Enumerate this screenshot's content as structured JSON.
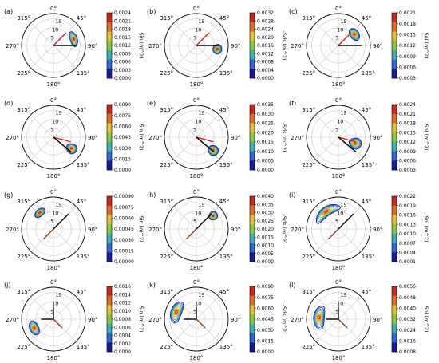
{
  "chart_data": {
    "type": "polar-contour",
    "direction_ticks": [
      "0°",
      "45°",
      "90°",
      "135°",
      "180°",
      "225°",
      "270°",
      "315°"
    ],
    "radial_ticks": [
      5,
      10,
      15
    ],
    "colormap": [
      "#1a1aa0",
      "#2f67d6",
      "#3fb0b0",
      "#88c840",
      "#e2c032",
      "#e06a28",
      "#c8281e"
    ],
    "panels": [
      {
        "label": "(a)",
        "cbar_label": "Sin (m^2)",
        "cbar_ticks": [
          "0.0024",
          "0.0021",
          "0.0018",
          "0.0015",
          "0.0012",
          "0.0009",
          "0.0006",
          "0.0003",
          "0.0000"
        ]
      },
      {
        "label": "(b)",
        "cbar_label": "-Sds (m^2)",
        "cbar_ticks": [
          "0.0032",
          "0.0028",
          "0.0024",
          "0.0020",
          "0.0016",
          "0.0012",
          "0.0008",
          "0.0004",
          "0.0000"
        ]
      },
      {
        "label": "(c)",
        "cbar_label": "Snl (m^2)",
        "cbar_ticks": [
          "0.0021",
          "0.0018",
          "0.0015",
          "0.0012",
          "0.0009",
          "0.0006",
          "0.0003"
        ]
      },
      {
        "label": "(d)",
        "cbar_label": "Sin (m^2)",
        "cbar_ticks": [
          "0.0090",
          "0.0075",
          "0.0060",
          "0.0045",
          "0.0030",
          "0.0015",
          "0.0000"
        ]
      },
      {
        "label": "(e)",
        "cbar_label": "-Sds (m^2)",
        "cbar_ticks": [
          "0.0035",
          "0.0030",
          "0.0025",
          "0.0020",
          "0.0015",
          "0.0010",
          "0.0005",
          "0.0000"
        ]
      },
      {
        "label": "(f)",
        "cbar_label": "Snl (m^2)",
        "cbar_ticks": [
          "0.0024",
          "0.0021",
          "0.0018",
          "0.0015",
          "0.0012",
          "0.0009",
          "0.0006",
          "0.0003"
        ]
      },
      {
        "label": "(g)",
        "cbar_label": "Sin (m^2)",
        "cbar_ticks": [
          "0.00090",
          "0.00075",
          "0.00060",
          "0.00045",
          "0.00030",
          "0.00015",
          "0.00000"
        ]
      },
      {
        "label": "(h)",
        "cbar_label": "-Sds (m^2)",
        "cbar_ticks": [
          "0.0040",
          "0.0035",
          "0.0030",
          "0.0025",
          "0.0020",
          "0.0015",
          "0.0010",
          "0.0005",
          "0.0000"
        ]
      },
      {
        "label": "(i)",
        "cbar_label": "Snl (m^2)",
        "cbar_ticks": [
          "0.0022",
          "0.0019",
          "0.0016",
          "0.0013",
          "0.0010",
          "0.0007",
          "0.0004",
          "0.0001"
        ]
      },
      {
        "label": "(j)",
        "cbar_label": "Sin (m^2)",
        "cbar_ticks": [
          "0.0016",
          "0.0014",
          "0.0012",
          "0.0010",
          "0.0008",
          "0.0006",
          "0.0004",
          "0.0002",
          "0.0000"
        ]
      },
      {
        "label": "(k)",
        "cbar_label": "-Sds (m^2)",
        "cbar_ticks": [
          "0.0090",
          "0.0075",
          "0.0060",
          "0.0045",
          "0.0030",
          "0.0015",
          "0.0000"
        ]
      },
      {
        "label": "(l)",
        "cbar_label": "Snl (m^2)",
        "cbar_ticks": [
          "0.0056",
          "0.0048",
          "0.0040",
          "0.0032",
          "0.0024",
          "0.0016",
          "0.0008"
        ]
      }
    ],
    "wind_lines": [
      {
        "panel": "a",
        "color": "#d42020",
        "direction": 45,
        "period": 10
      },
      {
        "panel": "a",
        "color": "#000000",
        "direction": 90,
        "period": 13
      },
      {
        "panel": "b",
        "color": "#d42020",
        "direction": 45,
        "period": 10
      },
      {
        "panel": "b",
        "color": "#000000",
        "direction": 90,
        "period": 13
      },
      {
        "panel": "c",
        "color": "#d42020",
        "direction": 45,
        "period": 10
      },
      {
        "panel": "c",
        "color": "#000000",
        "direction": 90,
        "period": 13
      },
      {
        "panel": "d",
        "color": "#d42020",
        "direction": 105,
        "period": 10
      },
      {
        "panel": "d",
        "color": "#000000",
        "direction": 130,
        "period": 13
      },
      {
        "panel": "e",
        "color": "#d42020",
        "direction": 105,
        "period": 10
      },
      {
        "panel": "e",
        "color": "#000000",
        "direction": 130,
        "period": 13
      },
      {
        "panel": "f",
        "color": "#d42020",
        "direction": 105,
        "period": 10
      },
      {
        "panel": "f",
        "color": "#000000",
        "direction": 130,
        "period": 13
      },
      {
        "panel": "g",
        "color": "#8b3a2a",
        "direction": 225,
        "period": 8
      },
      {
        "panel": "g",
        "color": "#000000",
        "direction": 45,
        "period": 12
      },
      {
        "panel": "h",
        "color": "#8b3a2a",
        "direction": 225,
        "period": 8
      },
      {
        "panel": "h",
        "color": "#000000",
        "direction": 45,
        "period": 12
      },
      {
        "panel": "i",
        "color": "#8b3a2a",
        "direction": 225,
        "period": 8
      },
      {
        "panel": "i",
        "color": "#000000",
        "direction": 45,
        "period": 12
      },
      {
        "panel": "j",
        "color": "#000000",
        "direction": 0,
        "period": 7
      },
      {
        "panel": "j",
        "color": "#000000",
        "direction": 270,
        "period": 7
      },
      {
        "panel": "j",
        "color": "#8b3a2a",
        "direction": 135,
        "period": 7
      },
      {
        "panel": "k",
        "color": "#000000",
        "direction": 0,
        "period": 7
      },
      {
        "panel": "k",
        "color": "#000000",
        "direction": 270,
        "period": 7
      },
      {
        "panel": "k",
        "color": "#8b3a2a",
        "direction": 135,
        "period": 7
      },
      {
        "panel": "l",
        "color": "#000000",
        "direction": 0,
        "period": 7
      },
      {
        "panel": "l",
        "color": "#000000",
        "direction": 270,
        "period": 7
      },
      {
        "panel": "l",
        "color": "#8b3a2a",
        "direction": 135,
        "period": 7
      }
    ],
    "blobs": [
      {
        "panel": "a",
        "direction": 72,
        "period": 12,
        "angular_width": 42,
        "radial_width": 4
      },
      {
        "panel": "b",
        "direction": 100,
        "period": 12,
        "angular_width": 26,
        "radial_width": 5
      },
      {
        "panel": "c",
        "direction": 55,
        "period": 11,
        "angular_width": 38,
        "radial_width": 5
      },
      {
        "panel": "d",
        "direction": 122,
        "period": 12,
        "angular_width": 26,
        "radial_width": 6
      },
      {
        "panel": "e",
        "direction": 128,
        "period": 12,
        "angular_width": 26,
        "radial_width": 6
      },
      {
        "panel": "f",
        "direction": 110,
        "period": 10,
        "angular_width": 34,
        "radial_width": 7
      },
      {
        "panel": "g",
        "direction": 320,
        "period": 12,
        "angular_width": 32,
        "radial_width": 4
      },
      {
        "panel": "h",
        "direction": 52,
        "period": 12,
        "angular_width": 22,
        "radial_width": 5
      },
      {
        "panel": "i",
        "direction": 325,
        "period": 12,
        "angular_width": 80,
        "radial_width": 5
      },
      {
        "panel": "j",
        "direction": 245,
        "period": 12,
        "angular_width": 40,
        "radial_width": 5
      },
      {
        "panel": "k",
        "direction": 290,
        "period": 12,
        "angular_width": 60,
        "radial_width": 6
      },
      {
        "panel": "l",
        "direction": 275,
        "period": 11,
        "angular_width": 70,
        "radial_width": 6
      }
    ]
  }
}
